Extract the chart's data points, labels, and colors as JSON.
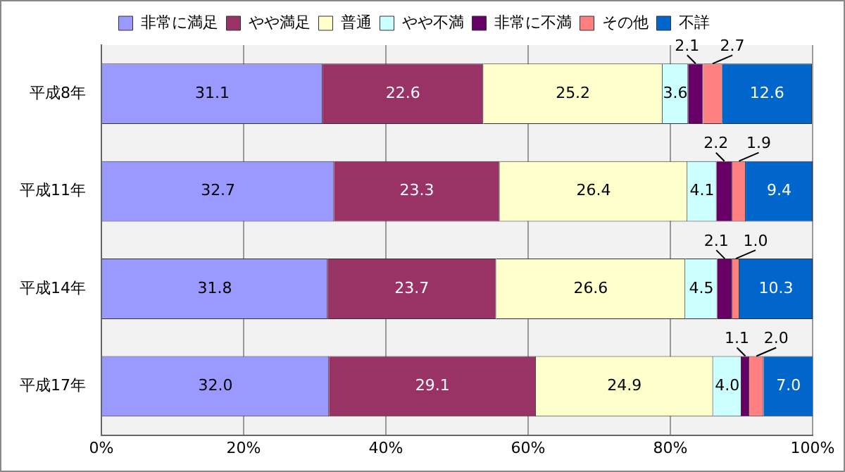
{
  "chart_data": {
    "type": "bar",
    "orientation": "horizontal",
    "stacked": true,
    "categories": [
      "平成8年",
      "平成11年",
      "平成14年",
      "平成17年"
    ],
    "series": [
      {
        "name": "非常に満足",
        "color": "#9999ff",
        "values": [
          31.1,
          32.7,
          31.8,
          32.0
        ],
        "value_labels": [
          "31.1",
          "32.7",
          "31.8",
          "32.0"
        ]
      },
      {
        "name": "やや満足",
        "color": "#993366",
        "values": [
          22.6,
          23.3,
          23.7,
          29.1
        ],
        "value_labels": [
          "22.6",
          "23.3",
          "23.7",
          "29.1"
        ]
      },
      {
        "name": "普通",
        "color": "#ffffcc",
        "values": [
          25.2,
          26.4,
          26.6,
          24.9
        ],
        "value_labels": [
          "25.2",
          "26.4",
          "26.6",
          "24.9"
        ]
      },
      {
        "name": "やや不満",
        "color": "#ccffff",
        "values": [
          3.6,
          4.1,
          4.5,
          4.0
        ],
        "value_labels": [
          "3.6",
          "4.1",
          "4.5",
          "4.0"
        ]
      },
      {
        "name": "非常に不満",
        "color": "#660066",
        "values": [
          2.1,
          2.2,
          2.1,
          1.1
        ],
        "value_labels": [
          "2.1",
          "2.2",
          "2.1",
          "1.1"
        ]
      },
      {
        "name": "その他",
        "color": "#ff8080",
        "values": [
          2.7,
          1.9,
          1.0,
          2.0
        ],
        "value_labels": [
          "2.7",
          "1.9",
          "1.0",
          "2.0"
        ]
      },
      {
        "name": "不詳",
        "color": "#0066cc",
        "values": [
          12.6,
          9.4,
          10.3,
          7.0
        ],
        "value_labels": [
          "12.6",
          "9.4",
          "10.3",
          "7.0"
        ]
      }
    ],
    "xlim": [
      0,
      100
    ],
    "xticks": [
      {
        "value": 0,
        "label": "0%"
      },
      {
        "value": 20,
        "label": "20%"
      },
      {
        "value": 40,
        "label": "40%"
      },
      {
        "value": 60,
        "label": "60%"
      },
      {
        "value": 80,
        "label": "80%"
      },
      {
        "value": 100,
        "label": "100%"
      }
    ],
    "grid": "x",
    "legend": "top"
  }
}
